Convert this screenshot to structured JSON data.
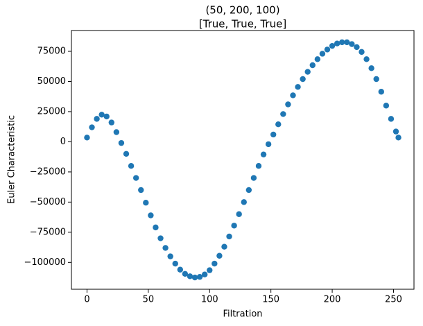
{
  "chart_data": {
    "type": "scatter",
    "title": [
      "(50, 200, 100)",
      "[True, True, True]"
    ],
    "xlabel": "Filtration",
    "ylabel": "Euler Characteristic",
    "x": [
      0,
      4,
      8,
      12,
      16,
      20,
      24,
      28,
      32,
      36,
      40,
      44,
      48,
      52,
      56,
      60,
      64,
      68,
      72,
      76,
      80,
      84,
      88,
      92,
      96,
      100,
      104,
      108,
      112,
      116,
      120,
      124,
      128,
      132,
      136,
      140,
      144,
      148,
      152,
      156,
      160,
      164,
      168,
      172,
      176,
      180,
      184,
      188,
      192,
      196,
      200,
      204,
      208,
      212,
      216,
      220,
      224,
      228,
      232,
      236,
      240,
      244,
      248,
      252,
      254
    ],
    "series": [
      {
        "color": "#1f77b4",
        "values": [
          3500,
          12000,
          19000,
          22500,
          21000,
          16000,
          8000,
          -1000,
          -10000,
          -20000,
          -30000,
          -40000,
          -50500,
          -61000,
          -71000,
          -80000,
          -88000,
          -95000,
          -101000,
          -106000,
          -109500,
          -111500,
          -112500,
          -112000,
          -110000,
          -106500,
          -101000,
          -94500,
          -87000,
          -78500,
          -69500,
          -60000,
          -50000,
          -40000,
          -30000,
          -20000,
          -10500,
          -2000,
          6000,
          14500,
          23000,
          31000,
          38500,
          45500,
          52000,
          58000,
          63500,
          68500,
          73000,
          76500,
          79500,
          81500,
          82500,
          82500,
          81000,
          78500,
          74500,
          68500,
          61000,
          52000,
          41500,
          30000,
          19000,
          8500,
          3500
        ]
      }
    ],
    "xlim": [
      -12.7,
      266.7
    ],
    "ylim": [
      -122250,
      92250
    ],
    "xticks": [
      0,
      50,
      100,
      150,
      200,
      250
    ],
    "yticks": [
      {
        "value": -100000,
        "label": "−100000"
      },
      {
        "value": -75000,
        "label": "−75000"
      },
      {
        "value": -50000,
        "label": "−50000"
      },
      {
        "value": -25000,
        "label": "−25000"
      },
      0,
      25000,
      50000,
      75000
    ],
    "grid": false
  }
}
